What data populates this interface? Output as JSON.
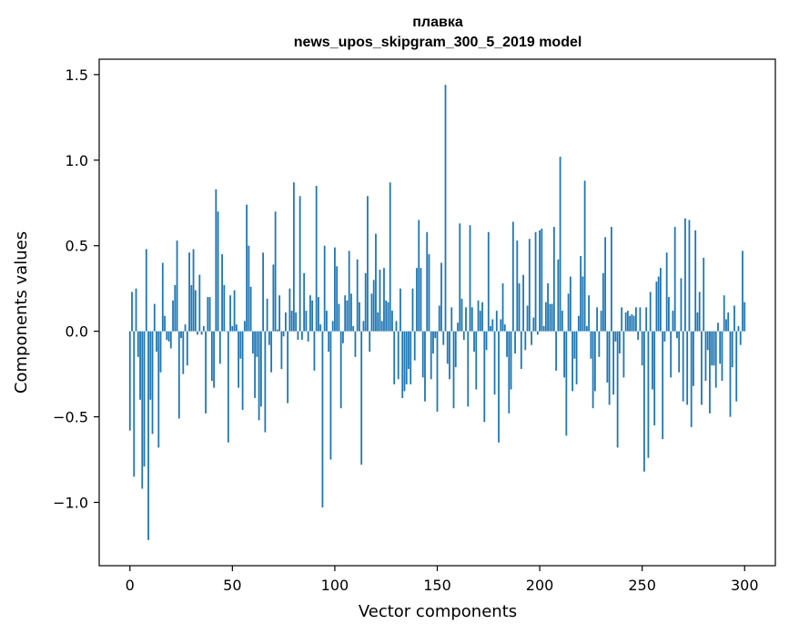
{
  "chart_data": {
    "type": "bar",
    "title": "плавка",
    "subtitle": "news_upos_skipgram_300_5_2019 model",
    "xlabel": "Vector components",
    "ylabel": "Components values",
    "xlim": [
      -15,
      315
    ],
    "ylim": [
      -1.37,
      1.59
    ],
    "xticks": [
      0,
      50,
      100,
      150,
      200,
      250,
      300
    ],
    "yticks": [
      -1.0,
      -0.5,
      0.0,
      0.5,
      1.0,
      1.5
    ],
    "xtick_labels": [
      "0",
      "50",
      "100",
      "150",
      "200",
      "250",
      "300"
    ],
    "ytick_labels": [
      "−1.0",
      "−0.5",
      "0.0",
      "0.5",
      "1.0",
      "1.5"
    ],
    "bar_color": "#1f77b4",
    "grid": false,
    "values": [
      -0.58,
      0.23,
      -0.85,
      0.25,
      -0.15,
      -0.4,
      -0.92,
      -0.79,
      0.48,
      -1.22,
      -0.4,
      -0.6,
      0.16,
      -0.12,
      -0.68,
      -0.24,
      0.4,
      0.09,
      -0.05,
      -0.06,
      -0.1,
      0.18,
      0.27,
      0.53,
      -0.51,
      -0.04,
      -0.25,
      0.04,
      -0.2,
      0.46,
      0.27,
      0.48,
      0.24,
      -0.02,
      0.33,
      -0.02,
      0.03,
      -0.48,
      0.2,
      0.2,
      -0.29,
      -0.33,
      0.83,
      0.7,
      -0.19,
      0.45,
      0.27,
      0.0,
      -0.65,
      0.21,
      0.03,
      0.24,
      0.04,
      -0.33,
      -0.16,
      -0.46,
      0.06,
      0.74,
      0.5,
      0.26,
      -0.13,
      -0.39,
      -0.15,
      -0.52,
      -0.44,
      0.46,
      -0.59,
      0.19,
      -0.08,
      -0.24,
      0.39,
      0.7,
      0.01,
      0.21,
      -0.22,
      -0.03,
      0.11,
      -0.42,
      0.25,
      0.12,
      0.87,
      0.11,
      -0.05,
      0.79,
      -0.05,
      0.34,
      0.12,
      -0.06,
      0.21,
      0.18,
      -0.23,
      0.85,
      0.2,
      0.04,
      -1.03,
      0.5,
      0.12,
      -0.12,
      -0.75,
      0.06,
      0.49,
      0.38,
      0.16,
      -0.45,
      -0.07,
      0.21,
      0.18,
      0.47,
      0.22,
      0.03,
      -0.15,
      0.42,
      0.17,
      -0.78,
      0.06,
      0.34,
      0.79,
      -0.12,
      0.22,
      0.3,
      0.57,
      0.11,
      0.36,
      0.06,
      0.37,
      0.18,
      0.17,
      0.87,
      0.12,
      -0.31,
      0.06,
      -0.28,
      0.25,
      -0.39,
      -0.35,
      -0.31,
      -0.22,
      -0.31,
      0.25,
      -0.17,
      0.37,
      0.65,
      0.37,
      -0.27,
      -0.41,
      0.58,
      0.45,
      -0.28,
      -0.13,
      -0.04,
      -0.47,
      0.15,
      0.4,
      -0.08,
      1.44,
      -0.19,
      -0.28,
      0.14,
      -0.45,
      -0.21,
      0.05,
      0.63,
      0.19,
      -0.05,
      0.14,
      -0.44,
      0.62,
      0.14,
      -0.12,
      -0.34,
      0.18,
      0.12,
      0.17,
      -0.53,
      -0.11,
      0.58,
      0.03,
      0.07,
      -0.37,
      0.12,
      -0.65,
      0.07,
      0.28,
      0.04,
      -0.15,
      -0.48,
      -0.34,
      0.64,
      -0.13,
      0.53,
      0.28,
      -0.22,
      0.33,
      -0.11,
      0.15,
      0.54,
      -0.08,
      0.08,
      0.58,
      -0.02,
      0.59,
      0.6,
      0.03,
      0.17,
      0.28,
      0.16,
      0.16,
      0.61,
      -0.23,
      0.42,
      1.02,
      0.12,
      -0.27,
      -0.61,
      0.22,
      0.32,
      -0.35,
      -0.16,
      -0.31,
      0.09,
      0.44,
      0.32,
      0.88,
      0.03,
      0.21,
      -0.16,
      -0.45,
      -0.35,
      0.14,
      -0.15,
      0.12,
      0.34,
      0.55,
      -0.3,
      -0.43,
      0.61,
      -0.37,
      -0.06,
      -0.68,
      -0.13,
      0.14,
      -0.27,
      0.11,
      0.12,
      0.09,
      0.1,
      0.09,
      0.14,
      -0.05,
      0.14,
      -0.2,
      -0.82,
      0.14,
      -0.74,
      0.23,
      -0.34,
      -0.55,
      0.29,
      0.32,
      0.37,
      -0.63,
      -0.06,
      0.46,
      0.2,
      -0.27,
      0.12,
      0.61,
      -0.04,
      -0.24,
      0.31,
      -0.41,
      0.66,
      -0.43,
      0.65,
      -0.56,
      -0.32,
      0.59,
      0.11,
      0.23,
      -0.43,
      0.43,
      -0.29,
      -0.11,
      -0.48,
      -0.2,
      -0.2,
      -0.33,
      0.05,
      -0.19,
      -0.29,
      0.21,
      0.07,
      0.11,
      -0.5,
      -0.21,
      0.15,
      -0.41,
      0.03,
      -0.08,
      0.47,
      0.17
    ]
  }
}
